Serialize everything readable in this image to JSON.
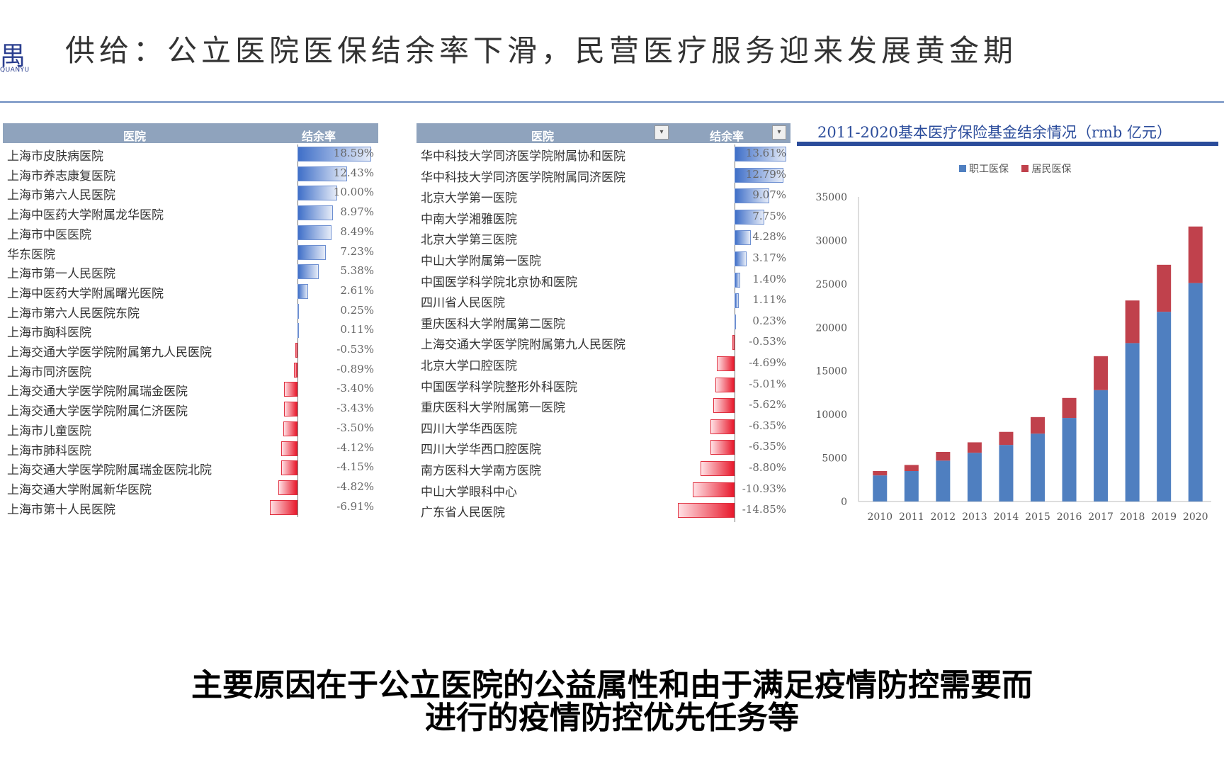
{
  "logo": {
    "glyph": "禺",
    "sub": "QUANYU"
  },
  "page_title": "供给：公立医院医保结余率下滑，民营医疗服务迎来发展黄金期",
  "table_left": {
    "headers": {
      "hospital": "医院",
      "rate": "结余率"
    },
    "rows": [
      {
        "name": "上海市皮肤病医院",
        "rate": "18.59%",
        "value": 18.59
      },
      {
        "name": "上海市养志康复医院",
        "rate": "12.43%",
        "value": 12.43
      },
      {
        "name": "上海市第六人民医院",
        "rate": "10.00%",
        "value": 10.0
      },
      {
        "name": "上海中医药大学附属龙华医院",
        "rate": "8.97%",
        "value": 8.97
      },
      {
        "name": "上海市中医医院",
        "rate": "8.49%",
        "value": 8.49
      },
      {
        "name": "华东医院",
        "rate": "7.23%",
        "value": 7.23
      },
      {
        "name": "上海市第一人民医院",
        "rate": "5.38%",
        "value": 5.38
      },
      {
        "name": "上海中医药大学附属曙光医院",
        "rate": "2.61%",
        "value": 2.61
      },
      {
        "name": "上海市第六人民医院东院",
        "rate": "0.25%",
        "value": 0.25
      },
      {
        "name": "上海市胸科医院",
        "rate": "0.11%",
        "value": 0.11
      },
      {
        "name": "上海交通大学医学院附属第九人民医院",
        "rate": "-0.53%",
        "value": -0.53
      },
      {
        "name": "上海市同济医院",
        "rate": "-0.89%",
        "value": -0.89
      },
      {
        "name": "上海交通大学医学院附属瑞金医院",
        "rate": "-3.40%",
        "value": -3.4
      },
      {
        "name": "上海交通大学医学院附属仁济医院",
        "rate": "-3.43%",
        "value": -3.43
      },
      {
        "name": "上海市儿童医院",
        "rate": "-3.50%",
        "value": -3.5
      },
      {
        "name": "上海市肺科医院",
        "rate": "-4.12%",
        "value": -4.12
      },
      {
        "name": "上海交通大学医学院附属瑞金医院北院",
        "rate": "-4.15%",
        "value": -4.15
      },
      {
        "name": "上海交通大学附属新华医院",
        "rate": "-4.82%",
        "value": -4.82
      },
      {
        "name": "上海市第十人民医院",
        "rate": "-6.91%",
        "value": -6.91
      }
    ]
  },
  "table_right": {
    "headers": {
      "hospital": "医院",
      "rate": "结余率"
    },
    "dropdown_glyph": "▾",
    "rows": [
      {
        "name": "华中科技大学同济医学院附属协和医院",
        "rate": "13.61%",
        "value": 13.61
      },
      {
        "name": "华中科技大学同济医学院附属同济医院",
        "rate": "12.79%",
        "value": 12.79
      },
      {
        "name": "北京大学第一医院",
        "rate": "9.07%",
        "value": 9.07
      },
      {
        "name": "中南大学湘雅医院",
        "rate": "7.75%",
        "value": 7.75
      },
      {
        "name": "北京大学第三医院",
        "rate": "4.28%",
        "value": 4.28
      },
      {
        "name": "中山大学附属第一医院",
        "rate": "3.17%",
        "value": 3.17
      },
      {
        "name": "中国医学科学院北京协和医院",
        "rate": "1.40%",
        "value": 1.4
      },
      {
        "name": "四川省人民医院",
        "rate": "1.11%",
        "value": 1.11
      },
      {
        "name": "重庆医科大学附属第二医院",
        "rate": "0.23%",
        "value": 0.23
      },
      {
        "name": "上海交通大学医学院附属第九人民医院",
        "rate": "-0.53%",
        "value": -0.53
      },
      {
        "name": "北京大学口腔医院",
        "rate": "-4.69%",
        "value": -4.69
      },
      {
        "name": "中国医学科学院整形外科医院",
        "rate": "-5.01%",
        "value": -5.01
      },
      {
        "name": "重庆医科大学附属第一医院",
        "rate": "-5.62%",
        "value": -5.62
      },
      {
        "name": "四川大学华西医院",
        "rate": "-6.35%",
        "value": -6.35
      },
      {
        "name": "四川大学华西口腔医院",
        "rate": "-6.35%",
        "value": -6.35
      },
      {
        "name": "南方医科大学南方医院",
        "rate": "-8.80%",
        "value": -8.8
      },
      {
        "name": "中山大学眼科中心",
        "rate": "-10.93%",
        "value": -10.93
      },
      {
        "name": "广东省人民医院",
        "rate": "-14.85%",
        "value": -14.85
      }
    ]
  },
  "chart_title": "2011-2020基本医疗保险基金结余情况（rmb 亿元）",
  "chart_data": {
    "type": "bar",
    "stacked": true,
    "title": "2011-2020基本医疗保险基金结余情况（rmb 亿元）",
    "categories": [
      "2010",
      "2011",
      "2012",
      "2013",
      "2014",
      "2015",
      "2016",
      "2017",
      "2018",
      "2019",
      "2020"
    ],
    "series": [
      {
        "name": "职工医保",
        "color": "#4f7fc0",
        "values": [
          3000,
          3500,
          4700,
          5600,
          6500,
          7800,
          9600,
          12800,
          18200,
          21800,
          25100
        ]
      },
      {
        "name": "居民医保",
        "color": "#c0414c",
        "values": [
          500,
          700,
          1000,
          1200,
          1500,
          1900,
          2300,
          3900,
          4900,
          5400,
          6500
        ]
      }
    ],
    "ylim": [
      0,
      35000
    ],
    "yticks": [
      "0",
      "5000",
      "10000",
      "15000",
      "20000",
      "25000",
      "30000",
      "35000"
    ],
    "legend_position": "top",
    "grid": false
  },
  "subtitle": {
    "line1": "主要原因在于公立医院的公益属性和由于满足疫情防控需要而",
    "line2": "进行的疫情防控优先任务等"
  }
}
